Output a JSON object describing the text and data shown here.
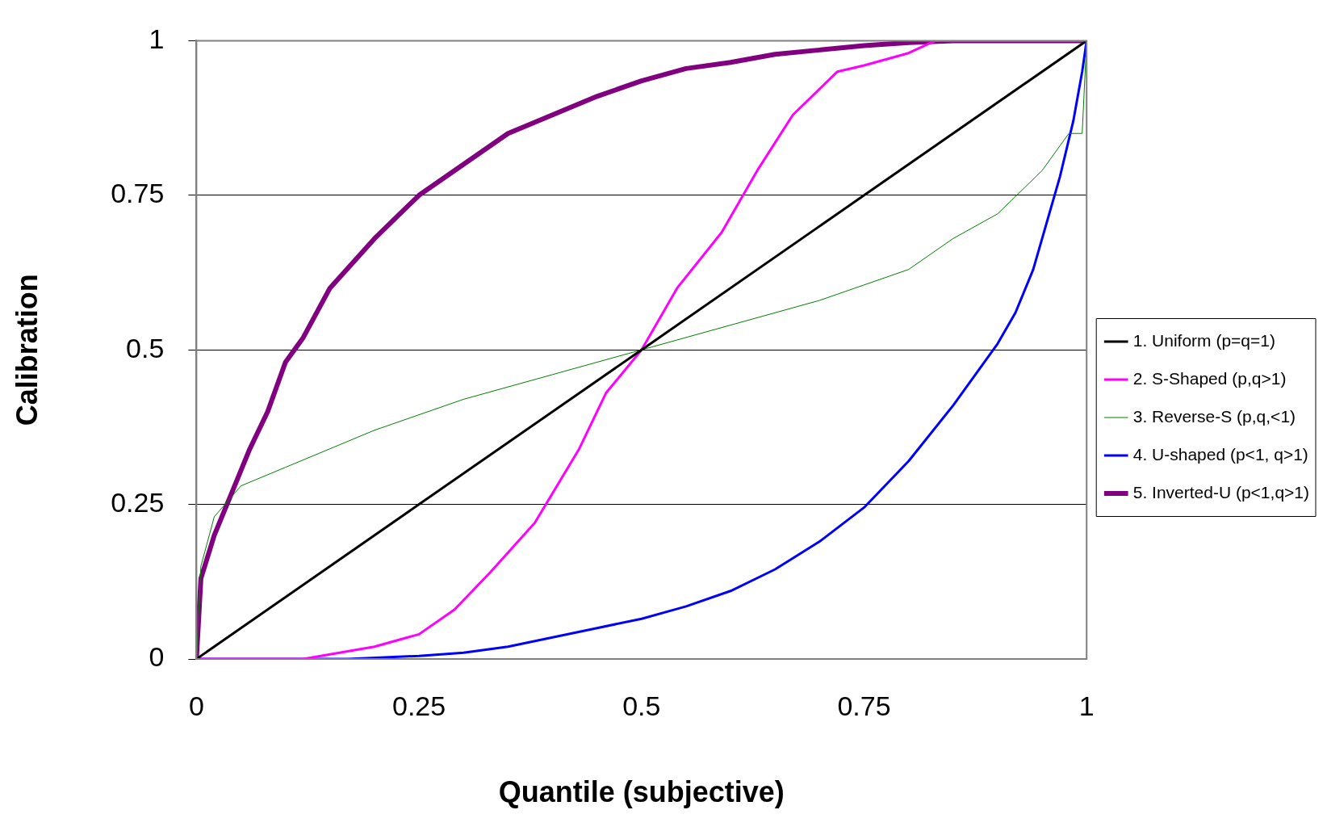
{
  "chart_data": {
    "type": "line",
    "xlabel": "Quantile (subjective)",
    "ylabel": "Calibration",
    "xlim": [
      0,
      1
    ],
    "xticks": [
      0,
      0.25,
      0.5,
      0.75,
      1
    ],
    "ylim": [
      0,
      1
    ],
    "yticks": [
      0,
      0.25,
      0.5,
      0.75,
      1
    ],
    "grid": "y",
    "legend": "right",
    "marker": "none",
    "series": [
      {
        "name": "1. Uniform (p=q=1)",
        "color": "#000000",
        "x": [
          0,
          0.25,
          0.5,
          0.75,
          1
        ],
        "values": [
          0,
          0.25,
          0.5,
          0.75,
          1
        ]
      },
      {
        "name": "2. S-Shaped (p,q>1)",
        "color": "#ff00ff",
        "x": [
          0,
          0.12,
          0.2,
          0.25,
          0.29,
          0.33,
          0.38,
          0.43,
          0.46,
          0.5,
          0.54,
          0.59,
          0.63,
          0.67,
          0.72,
          0.75,
          0.8,
          0.83,
          1
        ],
        "values": [
          0,
          0,
          0.02,
          0.04,
          0.08,
          0.14,
          0.22,
          0.34,
          0.43,
          0.5,
          0.6,
          0.69,
          0.79,
          0.88,
          0.95,
          0.96,
          0.98,
          1,
          1
        ]
      },
      {
        "name": "3. Reverse-S (p,q,<1)",
        "color": "#008000",
        "x": [
          0,
          0.005,
          0.02,
          0.05,
          0.1,
          0.15,
          0.2,
          0.3,
          0.4,
          0.5,
          0.6,
          0.7,
          0.8,
          0.85,
          0.9,
          0.95,
          0.98,
          0.995,
          1
        ],
        "values": [
          0,
          0.15,
          0.23,
          0.28,
          0.31,
          0.34,
          0.37,
          0.42,
          0.46,
          0.5,
          0.54,
          0.58,
          0.63,
          0.68,
          0.72,
          0.79,
          0.85,
          0.85,
          1
        ]
      },
      {
        "name": "4. U-shaped (p<1, q>1)",
        "color": "#0000ff",
        "x": [
          0,
          0.17,
          0.25,
          0.3,
          0.35,
          0.4,
          0.45,
          0.5,
          0.55,
          0.6,
          0.65,
          0.7,
          0.75,
          0.8,
          0.85,
          0.9,
          0.92,
          0.94,
          0.97,
          0.985,
          0.995,
          1
        ],
        "values": [
          0,
          0,
          0.005,
          0.01,
          0.02,
          0.035,
          0.05,
          0.065,
          0.085,
          0.11,
          0.145,
          0.19,
          0.245,
          0.32,
          0.41,
          0.51,
          0.56,
          0.63,
          0.78,
          0.87,
          0.95,
          1
        ]
      },
      {
        "name": "5. Inverted-U (p<1,q>1)",
        "color": "#800080",
        "x": [
          0,
          0.005,
          0.02,
          0.04,
          0.06,
          0.08,
          0.1,
          0.12,
          0.15,
          0.2,
          0.25,
          0.3,
          0.35,
          0.4,
          0.45,
          0.5,
          0.55,
          0.6,
          0.65,
          0.7,
          0.75,
          0.8,
          0.85,
          1
        ],
        "values": [
          0,
          0.13,
          0.2,
          0.27,
          0.34,
          0.4,
          0.48,
          0.52,
          0.6,
          0.68,
          0.75,
          0.8,
          0.85,
          0.88,
          0.91,
          0.935,
          0.955,
          0.965,
          0.978,
          0.985,
          0.992,
          0.997,
          1,
          1
        ]
      }
    ]
  }
}
